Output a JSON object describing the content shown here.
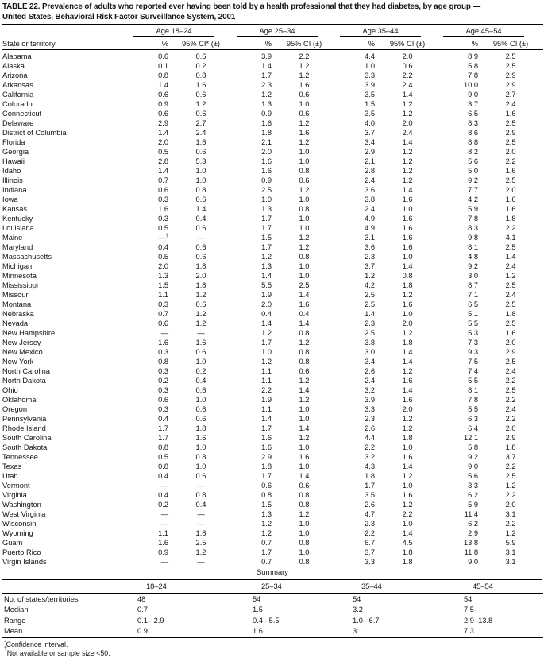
{
  "title": {
    "line1": "TABLE 22. Prevalence of adults who reported ever having been told by a health professional that they had diabetes, by age group —",
    "line2": "United States, Behavioral Risk Factor Surveillance System, 2001"
  },
  "table": {
    "row_header": "State or territory",
    "groups": [
      {
        "label": "Age 18–24",
        "pct": "%",
        "ci": "95% CI* (±)"
      },
      {
        "label": "Age 25–34",
        "pct": "%",
        "ci": "95% CI (±)"
      },
      {
        "label": "Age 35–44",
        "pct": "%",
        "ci": "95% CI (±)"
      },
      {
        "label": "Age 45–54",
        "pct": "%",
        "ci": "95% CI (±)"
      }
    ],
    "rows": [
      {
        "state": "Alabama",
        "values": [
          "0.6",
          "0.6",
          "3.9",
          "2.2",
          "4.4",
          "2.0",
          "8.9",
          "2.5"
        ]
      },
      {
        "state": "Alaska",
        "values": [
          "0.1",
          "0.2",
          "1.4",
          "1.2",
          "1.0",
          "0.6",
          "5.8",
          "2.5"
        ]
      },
      {
        "state": "Arizona",
        "values": [
          "0.8",
          "0.8",
          "1.7",
          "1.2",
          "3.3",
          "2.2",
          "7.8",
          "2.9"
        ]
      },
      {
        "state": "Arkansas",
        "values": [
          "1.4",
          "1.6",
          "2.3",
          "1.6",
          "3.9",
          "2.4",
          "10.0",
          "2.9"
        ]
      },
      {
        "state": "California",
        "values": [
          "0.6",
          "0.6",
          "1.2",
          "0.6",
          "3.5",
          "1.4",
          "9.0",
          "2.7"
        ]
      },
      {
        "state": "Colorado",
        "values": [
          "0.9",
          "1.2",
          "1.3",
          "1.0",
          "1.5",
          "1.2",
          "3.7",
          "2.4"
        ]
      },
      {
        "state": "Connecticut",
        "values": [
          "0.6",
          "0.6",
          "0.9",
          "0.6",
          "3.5",
          "1.2",
          "6.5",
          "1.6"
        ]
      },
      {
        "state": "Delaware",
        "values": [
          "2.9",
          "2.7",
          "1.6",
          "1.2",
          "4.0",
          "2.0",
          "8.3",
          "2.5"
        ]
      },
      {
        "state": "District of Columbia",
        "values": [
          "1.4",
          "2.4",
          "1.8",
          "1.6",
          "3.7",
          "2.4",
          "8.6",
          "2.9"
        ]
      },
      {
        "state": "Florida",
        "values": [
          "2.0",
          "1.6",
          "2.1",
          "1.2",
          "3.4",
          "1.4",
          "8.8",
          "2.5"
        ]
      },
      {
        "state": "Georgia",
        "values": [
          "0.5",
          "0.6",
          "2.0",
          "1.0",
          "2.9",
          "1.2",
          "8.2",
          "2.0"
        ]
      },
      {
        "state": "Hawaii",
        "values": [
          "2.8",
          "5.3",
          "1.6",
          "1.0",
          "2.1",
          "1.2",
          "5.6",
          "2.2"
        ]
      },
      {
        "state": "Idaho",
        "values": [
          "1.4",
          "1.0",
          "1.6",
          "0.8",
          "2.8",
          "1.2",
          "5.0",
          "1.6"
        ]
      },
      {
        "state": "Illinois",
        "values": [
          "0.7",
          "1.0",
          "0.9",
          "0.6",
          "2.4",
          "1.2",
          "9.2",
          "2.5"
        ]
      },
      {
        "state": "Indiana",
        "values": [
          "0.6",
          "0.8",
          "2.5",
          "1.2",
          "3.6",
          "1.4",
          "7.7",
          "2.0"
        ]
      },
      {
        "state": "Iowa",
        "values": [
          "0.3",
          "0.6",
          "1.0",
          "1.0",
          "3.8",
          "1.6",
          "4.2",
          "1.6"
        ]
      },
      {
        "state": "Kansas",
        "values": [
          "1.6",
          "1.4",
          "1.3",
          "0.8",
          "2.4",
          "1.0",
          "5.9",
          "1.6"
        ]
      },
      {
        "state": "Kentucky",
        "values": [
          "0.3",
          "0.4",
          "1.7",
          "1.0",
          "4.9",
          "1.6",
          "7.8",
          "1.8"
        ]
      },
      {
        "state": "Louisiana",
        "values": [
          "0.5",
          "0.6",
          "1.7",
          "1.0",
          "4.9",
          "1.6",
          "8.3",
          "2.2"
        ]
      },
      {
        "state": "Maine",
        "values": [
          "—†",
          "—",
          "1.5",
          "1.2",
          "3.1",
          "1.6",
          "9.8",
          "4.1"
        ]
      },
      {
        "state": "Maryland",
        "values": [
          "0.4",
          "0.6",
          "1.7",
          "1.2",
          "3.6",
          "1.6",
          "8.1",
          "2.5"
        ]
      },
      {
        "state": "Massachusetts",
        "values": [
          "0.5",
          "0.6",
          "1.2",
          "0.8",
          "2.3",
          "1.0",
          "4.8",
          "1.4"
        ]
      },
      {
        "state": "Michigan",
        "values": [
          "2.0",
          "1.8",
          "1.3",
          "1.0",
          "3.7",
          "1.4",
          "9.2",
          "2.4"
        ]
      },
      {
        "state": "Minnesota",
        "values": [
          "1.3",
          "2.0",
          "1.4",
          "1.0",
          "1.2",
          "0.8",
          "3.0",
          "1.2"
        ]
      },
      {
        "state": "Mississippi",
        "values": [
          "1.5",
          "1.8",
          "5.5",
          "2.5",
          "4.2",
          "1.8",
          "8.7",
          "2.5"
        ]
      },
      {
        "state": "Missouri",
        "values": [
          "1.1",
          "1.2",
          "1.9",
          "1.4",
          "2.5",
          "1.2",
          "7.1",
          "2.4"
        ]
      },
      {
        "state": "Montana",
        "values": [
          "0.3",
          "0.6",
          "2.0",
          "1.6",
          "2.5",
          "1.6",
          "6.5",
          "2.5"
        ]
      },
      {
        "state": "Nebraska",
        "values": [
          "0.7",
          "1.2",
          "0.4",
          "0.4",
          "1.4",
          "1.0",
          "5.1",
          "1.8"
        ]
      },
      {
        "state": "Nevada",
        "values": [
          "0.6",
          "1.2",
          "1.4",
          "1.4",
          "2.3",
          "2.0",
          "5.5",
          "2.5"
        ]
      },
      {
        "state": "New Hampshire",
        "values": [
          "—",
          "—",
          "1.2",
          "0.8",
          "2.5",
          "1.2",
          "5.3",
          "1.6"
        ]
      },
      {
        "state": "New Jersey",
        "values": [
          "1.6",
          "1.6",
          "1.7",
          "1.2",
          "3.8",
          "1.8",
          "7.3",
          "2.0"
        ]
      },
      {
        "state": "New Mexico",
        "values": [
          "0.3",
          "0.6",
          "1.0",
          "0.8",
          "3.0",
          "1.4",
          "9.3",
          "2.9"
        ]
      },
      {
        "state": "New York",
        "values": [
          "0.8",
          "1.0",
          "1.2",
          "0.8",
          "3.4",
          "1.4",
          "7.5",
          "2.5"
        ]
      },
      {
        "state": "North Carolina",
        "values": [
          "0.3",
          "0.2",
          "1.1",
          "0.6",
          "2.6",
          "1.2",
          "7.4",
          "2.4"
        ]
      },
      {
        "state": "North Dakota",
        "values": [
          "0.2",
          "0.4",
          "1.1",
          "1.2",
          "2.4",
          "1.6",
          "5.5",
          "2.2"
        ]
      },
      {
        "state": "Ohio",
        "values": [
          "0.3",
          "0.6",
          "2.2",
          "1.4",
          "3.2",
          "1.4",
          "8.1",
          "2.5"
        ]
      },
      {
        "state": "Oklahoma",
        "values": [
          "0.6",
          "1.0",
          "1.9",
          "1.2",
          "3.9",
          "1.6",
          "7.8",
          "2.2"
        ]
      },
      {
        "state": "Oregon",
        "values": [
          "0.3",
          "0.6",
          "1.1",
          "1.0",
          "3.3",
          "2.0",
          "5.5",
          "2.4"
        ]
      },
      {
        "state": "Pennsylvania",
        "values": [
          "0.4",
          "0.6",
          "1.4",
          "1.0",
          "2.3",
          "1.2",
          "6.3",
          "2.2"
        ]
      },
      {
        "state": "Rhode Island",
        "values": [
          "1.7",
          "1.8",
          "1.7",
          "1.4",
          "2.6",
          "1.2",
          "6.4",
          "2.0"
        ]
      },
      {
        "state": "South Carolina",
        "values": [
          "1.7",
          "1.6",
          "1.6",
          "1.2",
          "4.4",
          "1.8",
          "12.1",
          "2.9"
        ]
      },
      {
        "state": "South Dakota",
        "values": [
          "0.8",
          "1.0",
          "1.6",
          "1.0",
          "2.2",
          "1.0",
          "5.8",
          "1.8"
        ]
      },
      {
        "state": "Tennessee",
        "values": [
          "0.5",
          "0.8",
          "2.9",
          "1.6",
          "3.2",
          "1.6",
          "9.2",
          "3.7"
        ]
      },
      {
        "state": "Texas",
        "values": [
          "0.8",
          "1.0",
          "1.8",
          "1.0",
          "4.3",
          "1.4",
          "9.0",
          "2.2"
        ]
      },
      {
        "state": "Utah",
        "values": [
          "0.4",
          "0.6",
          "1.7",
          "1.4",
          "1.8",
          "1.2",
          "5.6",
          "2.5"
        ]
      },
      {
        "state": "Vermont",
        "values": [
          "—",
          "—",
          "0.6",
          "0.6",
          "1.7",
          "1.0",
          "3.3",
          "1.2"
        ]
      },
      {
        "state": "Virginia",
        "values": [
          "0.4",
          "0.8",
          "0.8",
          "0.8",
          "3.5",
          "1.6",
          "6.2",
          "2.2"
        ]
      },
      {
        "state": "Washington",
        "values": [
          "0.2",
          "0.4",
          "1.5",
          "0.8",
          "2.6",
          "1.2",
          "5.9",
          "2.0"
        ]
      },
      {
        "state": "West Virginia",
        "values": [
          "—",
          "—",
          "1.3",
          "1.2",
          "4.7",
          "2.2",
          "11.4",
          "3.1"
        ]
      },
      {
        "state": "Wisconsin",
        "values": [
          "—",
          "—",
          "1.2",
          "1.0",
          "2.3",
          "1.0",
          "6.2",
          "2.2"
        ]
      },
      {
        "state": "Wyoming",
        "values": [
          "1.1",
          "1.6",
          "1.2",
          "1.0",
          "2.2",
          "1.4",
          "2.9",
          "1.2"
        ]
      },
      {
        "state": "Guam",
        "values": [
          "1.6",
          "2.5",
          "0.7",
          "0.8",
          "6.7",
          "4.5",
          "13.8",
          "5.9"
        ]
      },
      {
        "state": "Puerto Rico",
        "values": [
          "0.9",
          "1.2",
          "1.7",
          "1.0",
          "3.7",
          "1.8",
          "11.8",
          "3.1"
        ]
      },
      {
        "state": "Virgin Islands",
        "values": [
          "—",
          "—",
          "0.7",
          "0.8",
          "3.3",
          "1.8",
          "9.0",
          "3.1"
        ]
      }
    ]
  },
  "summary": {
    "label": "Summary",
    "columns": [
      "18–24",
      "25–34",
      "35–44",
      "45–54"
    ],
    "rows": [
      {
        "label": "No. of states/territories",
        "values": [
          "48",
          "54",
          "54",
          "54"
        ]
      },
      {
        "label": "Median",
        "values": [
          "0.7",
          "1.5",
          "3.2",
          "7.5"
        ]
      },
      {
        "label": "Range",
        "values": [
          "0.1– 2.9",
          "0.4– 5.5",
          "1.0– 6.7",
          "2.9–13.8"
        ]
      },
      {
        "label": "Mean",
        "values": [
          "0.9",
          "1.6",
          "3.1",
          "7.3"
        ]
      }
    ]
  },
  "footnotes": [
    {
      "marker": "*",
      "text": "Confidence interval."
    },
    {
      "marker": "†",
      "text": "Not available or sample size <50."
    }
  ]
}
